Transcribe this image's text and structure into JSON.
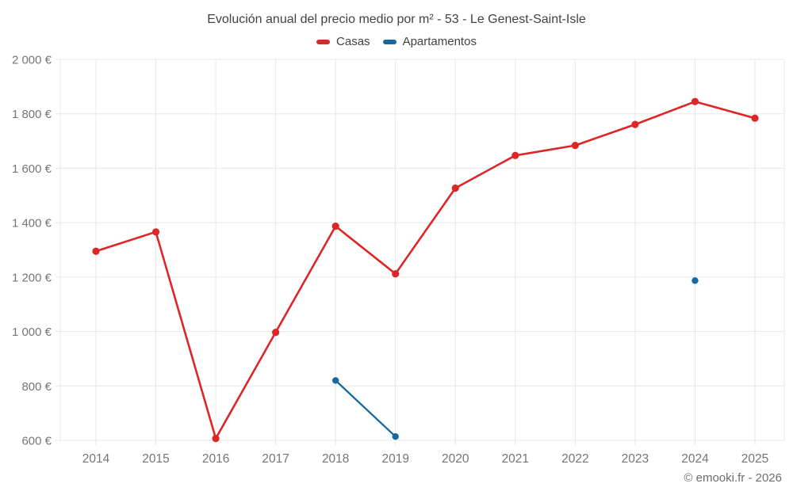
{
  "attribution": "© emooki.fr - 2026",
  "colors": {
    "grid": "#e7e7e7",
    "tick_label": "#757575",
    "title_text": "#424242",
    "background": "#ffffff"
  },
  "chart_data": {
    "type": "line",
    "title": "Evolución anual del precio medio por m² - 53 - Le Genest-Saint-Isle",
    "categories": [
      "2014",
      "2015",
      "2016",
      "2017",
      "2018",
      "2019",
      "2020",
      "2021",
      "2022",
      "2023",
      "2024",
      "2025"
    ],
    "series": [
      {
        "name": "Casas",
        "color": "#dc2627",
        "values": [
          1295,
          1366,
          607,
          997,
          1387,
          1212,
          1527,
          1647,
          1684,
          1761,
          1845,
          1784
        ]
      },
      {
        "name": "Apartamentos",
        "color": "#1668a0",
        "values": [
          null,
          null,
          null,
          null,
          820,
          614,
          null,
          null,
          null,
          null,
          1187,
          null
        ]
      }
    ],
    "ylim": [
      600,
      2000
    ],
    "yticks": [
      600,
      800,
      1000,
      1200,
      1400,
      1600,
      1800,
      2000
    ],
    "ytick_labels": [
      "600 €",
      "800 €",
      "1 000 €",
      "1 200 €",
      "1 400 €",
      "1 600 €",
      "1 800 €",
      "2 000 €"
    ],
    "y_unit": "€",
    "grid": true,
    "legend_position": "top"
  }
}
